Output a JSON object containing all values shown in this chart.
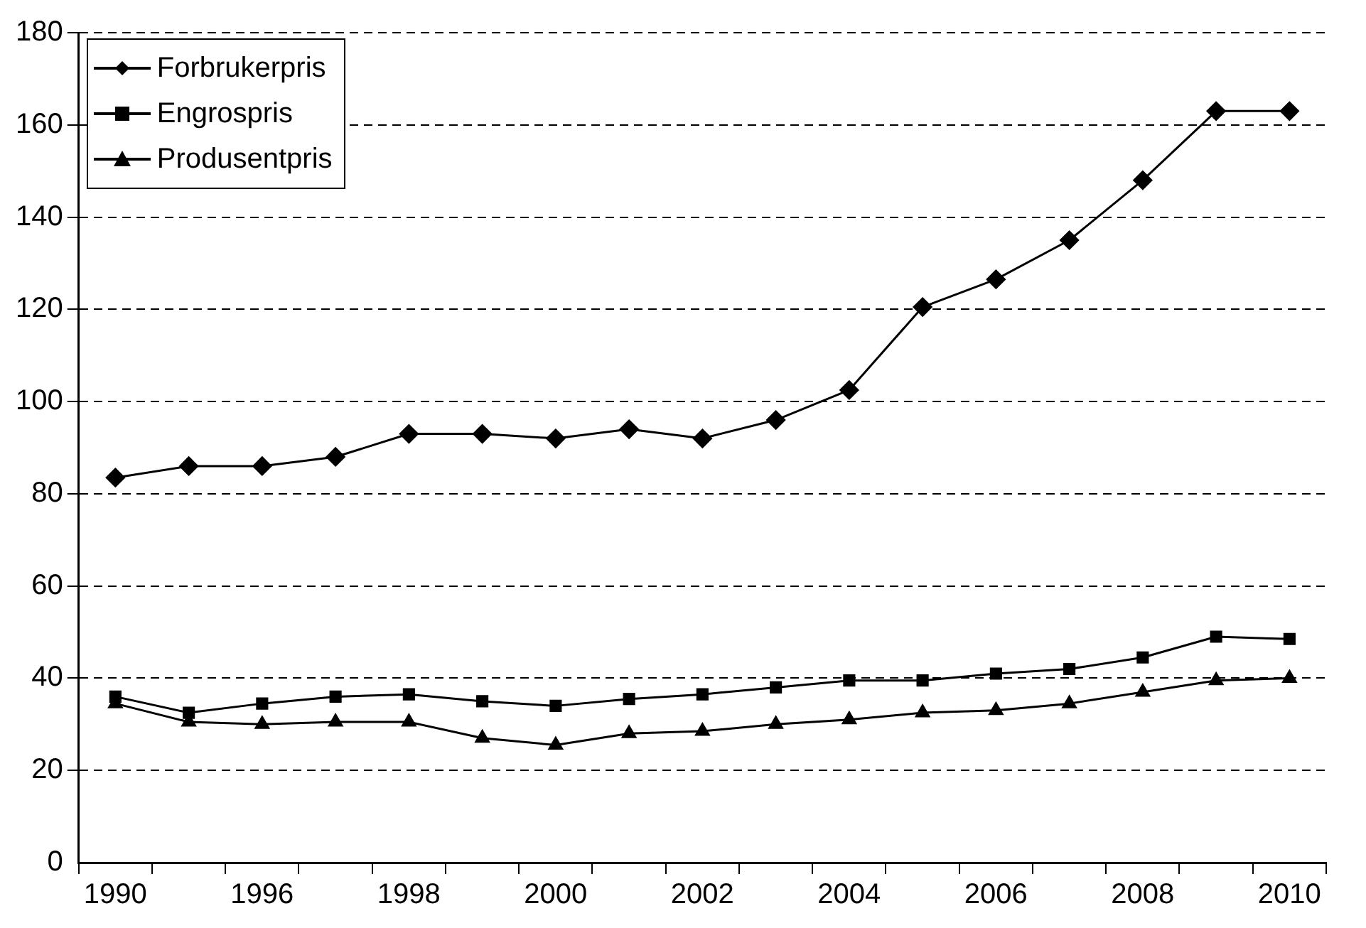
{
  "chart_data": {
    "type": "line",
    "categories": [
      "1990",
      null,
      "1996",
      null,
      "1998",
      null,
      "2000",
      null,
      "2002",
      null,
      "2004",
      null,
      "2006",
      null,
      "2008",
      null,
      "2010"
    ],
    "series": [
      {
        "name": "Forbrukerpris",
        "color": "#000000",
        "marker": "diamond",
        "values": [
          83.5,
          86,
          86,
          88,
          93,
          93,
          92,
          94,
          92,
          96,
          102.5,
          120.5,
          126.5,
          135,
          148,
          163,
          163
        ]
      },
      {
        "name": "Engrospris",
        "color": "#000000",
        "marker": "square",
        "values": [
          36,
          32.5,
          34.5,
          36,
          36.5,
          35,
          34,
          35.5,
          36.5,
          38,
          39.5,
          39.5,
          41,
          42,
          44.5,
          49,
          48.5
        ]
      },
      {
        "name": "Produsentpris",
        "color": "#000000",
        "marker": "triangle",
        "values": [
          34.5,
          30.5,
          30,
          30.5,
          30.5,
          27,
          25.5,
          28,
          28.5,
          30,
          31,
          32.5,
          33,
          34.5,
          37,
          39.5,
          40
        ]
      }
    ],
    "ylim": [
      0,
      180
    ],
    "yticks": [
      0,
      20,
      40,
      60,
      80,
      100,
      120,
      140,
      160,
      180
    ],
    "grid": "y",
    "legend": "top left",
    "line_style": "solid"
  }
}
